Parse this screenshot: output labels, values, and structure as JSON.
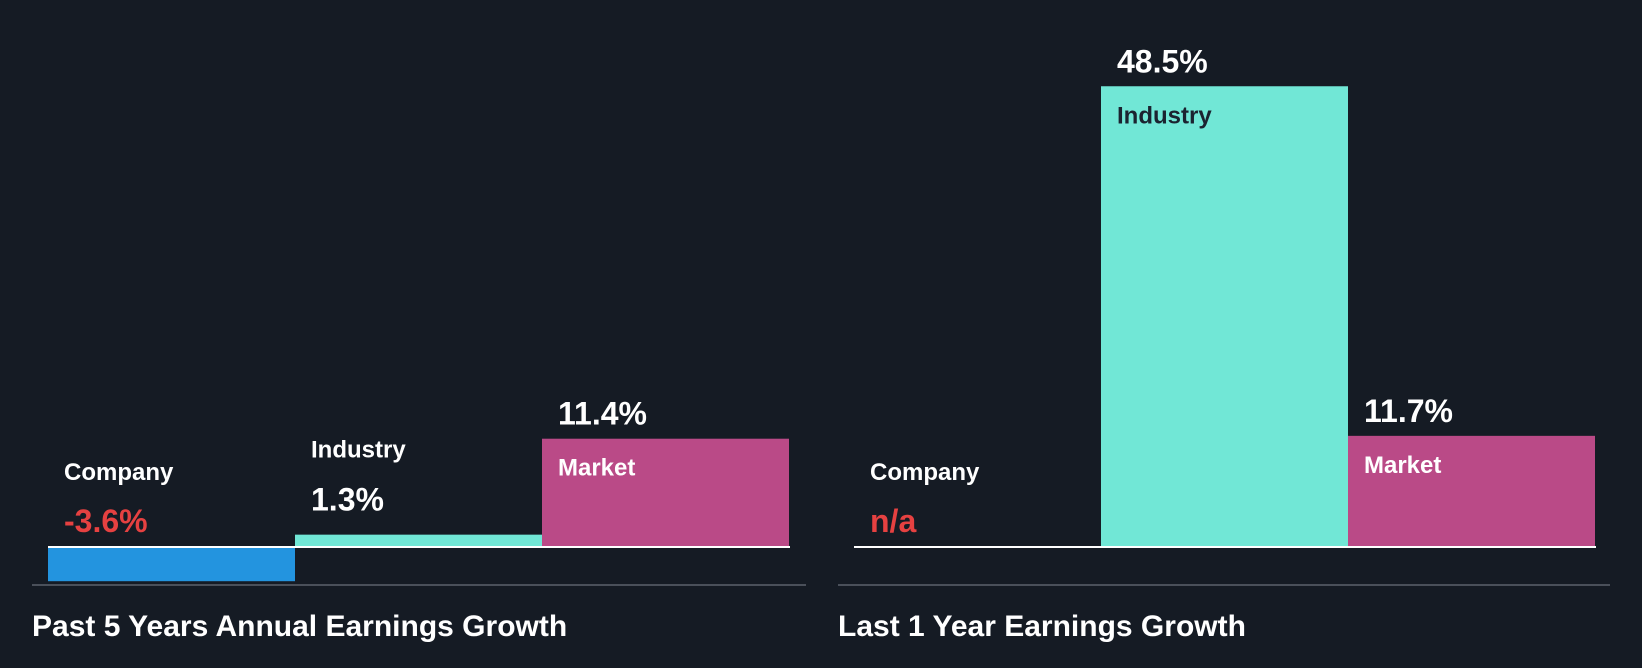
{
  "colors": {
    "background": "#151b24",
    "company": "#2394df",
    "industry": "#71e7d6",
    "market": "#ba4a87",
    "negative_text": "#e64141",
    "text_light": "#ffffff",
    "text_dark": "#1b2330",
    "baseline": "#ffffff",
    "axis_line": "#4a505a"
  },
  "chart_data": [
    {
      "type": "bar",
      "title": "Past 5 Years Annual Earnings Growth",
      "unit": "%",
      "categories": [
        "Company",
        "Industry",
        "Market"
      ],
      "values": [
        -3.6,
        1.3,
        11.4
      ],
      "value_labels": [
        "-3.6%",
        "1.3%",
        "11.4%"
      ],
      "color_keys": [
        "company",
        "industry",
        "market"
      ],
      "ylim": [
        -3.6,
        48.5
      ]
    },
    {
      "type": "bar",
      "title": "Last 1 Year Earnings Growth",
      "unit": "%",
      "categories": [
        "Company",
        "Industry",
        "Market"
      ],
      "values": [
        null,
        48.5,
        11.7
      ],
      "value_labels": [
        "n/a",
        "48.5%",
        "11.7%"
      ],
      "color_keys": [
        "company",
        "industry",
        "market"
      ],
      "ylim": [
        -3.6,
        48.5
      ]
    }
  ]
}
